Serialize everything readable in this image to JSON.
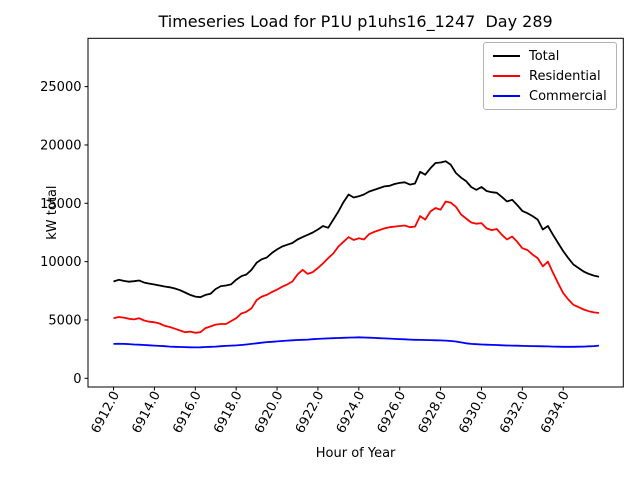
{
  "chart_data": {
    "type": "line",
    "title": "Timeseries Load for P1U p1uhs16_1247  Day 289",
    "xlabel": "Hour of Year",
    "ylabel": "kW total",
    "legend_position": "upper right",
    "grid": false,
    "xlim": [
      6910.75,
      6936.94
    ],
    "ylim": [
      -746,
      29143
    ],
    "xticks": [
      6912,
      6914,
      6916,
      6918,
      6920,
      6922,
      6924,
      6926,
      6928,
      6930,
      6932,
      6934
    ],
    "xtick_labels": [
      "6912.0",
      "6914.0",
      "6916.0",
      "6918.0",
      "6920.0",
      "6922.0",
      "6924.0",
      "6926.0",
      "6928.0",
      "6930.0",
      "6932.0",
      "6934.0"
    ],
    "yticks": [
      0,
      5000,
      10000,
      15000,
      20000,
      25000
    ],
    "ytick_labels": [
      "0",
      "5000",
      "10000",
      "15000",
      "20000",
      "25000"
    ],
    "x": [
      6912.0,
      6912.25,
      6912.5,
      6912.75,
      6913.0,
      6913.25,
      6913.5,
      6913.75,
      6914.0,
      6914.25,
      6914.5,
      6914.75,
      6915.0,
      6915.25,
      6915.5,
      6915.75,
      6916.0,
      6916.25,
      6916.5,
      6916.75,
      6917.0,
      6917.25,
      6917.5,
      6917.75,
      6918.0,
      6918.25,
      6918.5,
      6918.75,
      6919.0,
      6919.25,
      6919.5,
      6919.75,
      6920.0,
      6920.25,
      6920.5,
      6920.75,
      6921.0,
      6921.25,
      6921.5,
      6921.75,
      6922.0,
      6922.25,
      6922.5,
      6922.75,
      6923.0,
      6923.25,
      6923.5,
      6923.75,
      6924.0,
      6924.25,
      6924.5,
      6924.75,
      6925.0,
      6925.25,
      6925.5,
      6925.75,
      6926.0,
      6926.25,
      6926.5,
      6926.75,
      6927.0,
      6927.25,
      6927.5,
      6927.75,
      6928.0,
      6928.25,
      6928.5,
      6928.75,
      6929.0,
      6929.25,
      6929.5,
      6929.75,
      6930.0,
      6930.25,
      6930.5,
      6930.75,
      6931.0,
      6931.25,
      6931.5,
      6931.75,
      6932.0,
      6932.25,
      6932.5,
      6932.75,
      6933.0,
      6933.25,
      6933.5,
      6933.75,
      6934.0,
      6934.25,
      6934.5,
      6934.75,
      6935.0,
      6935.25,
      6935.5,
      6935.75
    ],
    "series": [
      {
        "name": "Total",
        "color": "#000000",
        "values": [
          8300,
          8440,
          8350,
          8280,
          8320,
          8380,
          8200,
          8120,
          8040,
          7950,
          7870,
          7800,
          7700,
          7550,
          7350,
          7150,
          7000,
          6950,
          7150,
          7250,
          7650,
          7900,
          7950,
          8050,
          8450,
          8750,
          8900,
          9300,
          9900,
          10200,
          10350,
          10750,
          11050,
          11300,
          11450,
          11600,
          11900,
          12100,
          12300,
          12500,
          12750,
          13050,
          12900,
          13600,
          14300,
          15100,
          15750,
          15500,
          15600,
          15750,
          16000,
          16150,
          16300,
          16450,
          16500,
          16650,
          16750,
          16800,
          16600,
          16700,
          17700,
          17450,
          18000,
          18450,
          18500,
          18600,
          18300,
          17600,
          17200,
          16900,
          16400,
          16150,
          16400,
          16050,
          15950,
          15900,
          15550,
          15150,
          15300,
          14850,
          14350,
          14150,
          13900,
          13600,
          12750,
          13050,
          12300,
          11600,
          10900,
          10300,
          9750,
          9450,
          9150,
          8950,
          8800,
          8700
        ]
      },
      {
        "name": "Residential",
        "color": "#ff0000",
        "values": [
          5150,
          5250,
          5200,
          5100,
          5050,
          5150,
          4950,
          4850,
          4800,
          4700,
          4500,
          4400,
          4250,
          4100,
          3950,
          4000,
          3900,
          3950,
          4300,
          4450,
          4600,
          4650,
          4650,
          4900,
          5150,
          5550,
          5700,
          6000,
          6700,
          7000,
          7150,
          7400,
          7600,
          7850,
          8050,
          8300,
          8900,
          9300,
          8950,
          9100,
          9450,
          9850,
          10300,
          10700,
          11300,
          11700,
          12100,
          11850,
          12000,
          11900,
          12350,
          12550,
          12700,
          12850,
          12950,
          13000,
          13050,
          13100,
          12950,
          13000,
          13900,
          13600,
          14300,
          14600,
          14450,
          15150,
          15050,
          14700,
          14050,
          13700,
          13350,
          13250,
          13300,
          12850,
          12700,
          12800,
          12300,
          11900,
          12150,
          11700,
          11150,
          11000,
          10600,
          10300,
          9600,
          10000,
          9050,
          8150,
          7300,
          6750,
          6300,
          6100,
          5900,
          5750,
          5650,
          5600
        ]
      },
      {
        "name": "Commercial",
        "color": "#0000ff",
        "values": [
          2950,
          2960,
          2950,
          2930,
          2900,
          2880,
          2850,
          2830,
          2800,
          2780,
          2750,
          2720,
          2700,
          2680,
          2670,
          2660,
          2650,
          2660,
          2680,
          2700,
          2720,
          2750,
          2780,
          2800,
          2820,
          2850,
          2900,
          2950,
          3000,
          3050,
          3100,
          3130,
          3160,
          3200,
          3230,
          3260,
          3280,
          3300,
          3320,
          3350,
          3380,
          3400,
          3420,
          3440,
          3450,
          3470,
          3490,
          3500,
          3510,
          3500,
          3480,
          3460,
          3440,
          3420,
          3400,
          3380,
          3360,
          3340,
          3320,
          3300,
          3290,
          3280,
          3270,
          3260,
          3250,
          3230,
          3200,
          3150,
          3080,
          3000,
          2950,
          2920,
          2900,
          2880,
          2860,
          2850,
          2830,
          2810,
          2800,
          2790,
          2780,
          2770,
          2760,
          2750,
          2740,
          2730,
          2720,
          2710,
          2700,
          2700,
          2700,
          2710,
          2720,
          2740,
          2760,
          2800
        ]
      }
    ]
  }
}
